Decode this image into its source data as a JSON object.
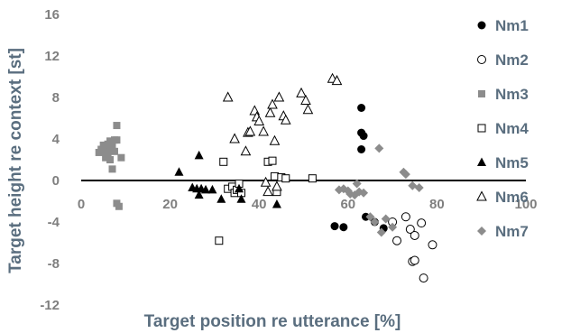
{
  "chart_data": {
    "type": "scatter",
    "title": "",
    "xlabel": "Target position re utterance [%]",
    "ylabel": "Target height re context [st]",
    "xlim": [
      0,
      100
    ],
    "ylim": [
      -12,
      16
    ],
    "xticks": [
      0,
      20,
      40,
      60,
      80,
      100
    ],
    "xtick_labels": [
      "0",
      "20",
      "40",
      "60",
      "80",
      "100"
    ],
    "yticks": [
      -12,
      -8,
      -4,
      0,
      4,
      8,
      12,
      16
    ],
    "ytick_labels": [
      "-12",
      "-8",
      "-4",
      "0",
      "4",
      "8",
      "12",
      "16"
    ],
    "grid": "none",
    "legend_position": "right",
    "series": [
      {
        "name": "Nm1",
        "marker": "circle-filled",
        "color": "#000000",
        "points": [
          [
            57,
            -4.4
          ],
          [
            59,
            -4.5
          ],
          [
            63,
            7
          ],
          [
            63,
            4.6
          ],
          [
            63.5,
            4.3
          ],
          [
            63,
            3
          ],
          [
            64,
            -3.5
          ],
          [
            66,
            -4
          ],
          [
            68,
            -4.6
          ]
        ]
      },
      {
        "name": "Nm2",
        "marker": "circle-open",
        "color": "#000000",
        "points": [
          [
            70,
            -4
          ],
          [
            71,
            -5.8
          ],
          [
            73,
            -3.5
          ],
          [
            74,
            -4.7
          ],
          [
            74.5,
            -7.8
          ],
          [
            75,
            -7.7
          ],
          [
            75,
            -5.3
          ],
          [
            76.5,
            -4.1
          ],
          [
            77,
            -9.4
          ],
          [
            79,
            -6.2
          ]
        ]
      },
      {
        "name": "Nm3",
        "marker": "square-filled",
        "color": "#8c8c8c",
        "points": [
          [
            4,
            2.7
          ],
          [
            4.5,
            3
          ],
          [
            5,
            2.8
          ],
          [
            5.5,
            3.2
          ],
          [
            5.5,
            2.2
          ],
          [
            6,
            3.5
          ],
          [
            6,
            2.5
          ],
          [
            6.5,
            3.8
          ],
          [
            6.5,
            2
          ],
          [
            7,
            3.3
          ],
          [
            7,
            1.1
          ],
          [
            7.5,
            3.9
          ],
          [
            7.5,
            2.8
          ],
          [
            8,
            3.9
          ],
          [
            8,
            -2.2
          ],
          [
            8,
            5.3
          ],
          [
            8.5,
            -2.5
          ],
          [
            9,
            2.2
          ],
          [
            6.5,
            3.1
          ],
          [
            5,
            3.4
          ]
        ]
      },
      {
        "name": "Nm4",
        "marker": "square-open",
        "color": "#000000",
        "points": [
          [
            31,
            -5.8
          ],
          [
            32,
            1.8
          ],
          [
            33,
            -0.8
          ],
          [
            34,
            -0.6
          ],
          [
            34.5,
            -1.2
          ],
          [
            35,
            -0.9
          ],
          [
            35.5,
            -0.3
          ],
          [
            36,
            -1.2
          ],
          [
            42,
            1.8
          ],
          [
            43,
            1.9
          ],
          [
            43.5,
            0.4
          ],
          [
            44,
            -1.1
          ],
          [
            45,
            0.3
          ],
          [
            46,
            0.2
          ],
          [
            52,
            0.2
          ]
        ]
      },
      {
        "name": "Nm5",
        "marker": "triangle-filled",
        "color": "#000000",
        "points": [
          [
            22,
            0.8
          ],
          [
            25,
            -0.7
          ],
          [
            26,
            -0.8
          ],
          [
            26.5,
            2.4
          ],
          [
            26.5,
            -1.4
          ],
          [
            27,
            -0.8
          ],
          [
            28,
            -0.9
          ],
          [
            29.5,
            -0.9
          ],
          [
            31.5,
            -1.8
          ],
          [
            36,
            -1.8
          ],
          [
            44,
            -2.3
          ],
          [
            35.5,
            -0.8
          ]
        ]
      },
      {
        "name": "Nm6",
        "marker": "triangle-open",
        "color": "#000000",
        "points": [
          [
            33,
            8
          ],
          [
            34.5,
            4
          ],
          [
            37,
            2.8
          ],
          [
            37.5,
            4.6
          ],
          [
            38,
            4.7
          ],
          [
            39,
            6.7
          ],
          [
            39.5,
            6.1
          ],
          [
            40,
            5.7
          ],
          [
            41,
            4.7
          ],
          [
            41.5,
            -0.2
          ],
          [
            42,
            -1.1
          ],
          [
            42.5,
            6.5
          ],
          [
            43,
            7.3
          ],
          [
            43.5,
            3.8
          ],
          [
            44,
            -0.6
          ],
          [
            44.5,
            8
          ],
          [
            45.5,
            6.2
          ],
          [
            46,
            5.8
          ],
          [
            49.5,
            8.4
          ],
          [
            50.5,
            7.7
          ],
          [
            51,
            6.8
          ],
          [
            56.5,
            9.8
          ],
          [
            57.5,
            9.6
          ]
        ]
      },
      {
        "name": "Nm7",
        "marker": "diamond-filled",
        "color": "#8c8c8c",
        "points": [
          [
            58,
            -0.9
          ],
          [
            59,
            -0.8
          ],
          [
            60,
            -1
          ],
          [
            60.5,
            -1.3
          ],
          [
            61.5,
            -1.4
          ],
          [
            62,
            -0.3
          ],
          [
            62.5,
            -1.1
          ],
          [
            63.5,
            -1.2
          ],
          [
            65,
            -3.5
          ],
          [
            66,
            -4
          ],
          [
            67,
            3.1
          ],
          [
            67.5,
            -5
          ],
          [
            68.5,
            -3.7
          ],
          [
            70,
            -4.5
          ],
          [
            72.5,
            0.8
          ],
          [
            73,
            0.6
          ],
          [
            74.5,
            -0.5
          ],
          [
            76,
            -0.7
          ]
        ]
      }
    ]
  }
}
